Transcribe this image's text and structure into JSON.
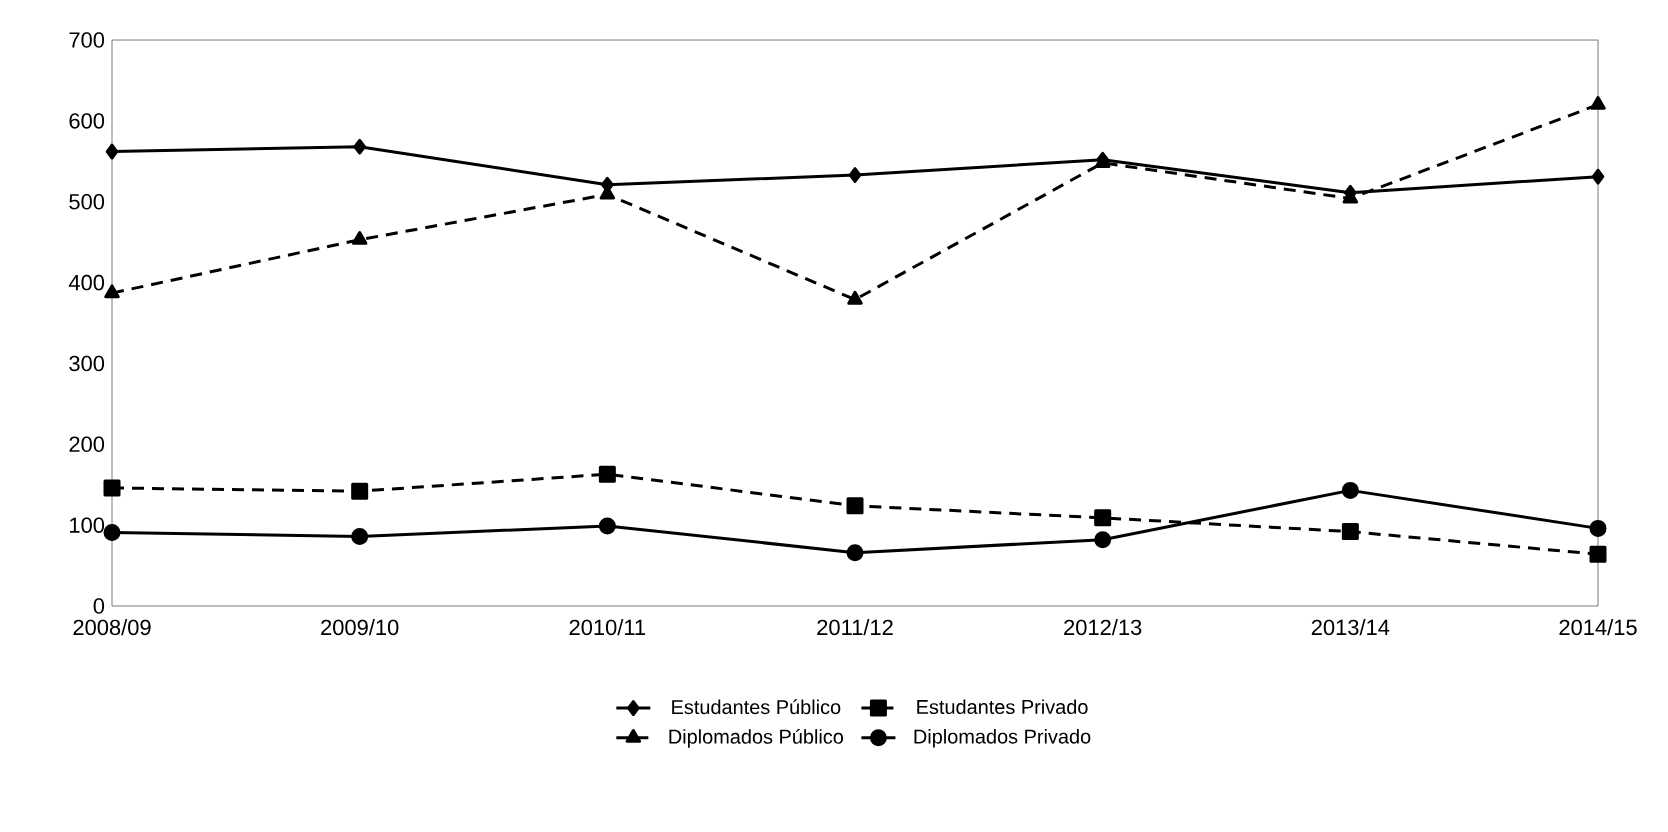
{
  "chart_data": {
    "type": "line",
    "categories": [
      "2008/09",
      "2009/10",
      "2010/11",
      "2011/12",
      "2012/13",
      "2013/14",
      "2014/15"
    ],
    "ylim": [
      0,
      700
    ],
    "yticks": [
      0,
      100,
      200,
      300,
      400,
      500,
      600,
      700
    ],
    "legend": "bottom",
    "series": [
      {
        "name": "Estudantes Público",
        "color": "#000000",
        "marker": "diamond",
        "line_style": "solid",
        "values": [
          562,
          568,
          521,
          533,
          552,
          511,
          531
        ]
      },
      {
        "name": "Estudantes Privado",
        "color": "#000000",
        "marker": "square",
        "line_style": "dashed",
        "values": [
          146,
          142,
          163,
          124,
          109,
          92,
          64
        ]
      },
      {
        "name": "Diplomados Público",
        "color": "#000000",
        "marker": "triangle",
        "line_style": "dashed",
        "values": [
          387,
          453,
          509,
          379,
          548,
          504,
          620
        ]
      },
      {
        "name": "Diplomados Privado",
        "color": "#000000",
        "marker": "circle",
        "line_style": "solid",
        "values": [
          91,
          86,
          99,
          66,
          82,
          143,
          96
        ]
      }
    ]
  }
}
